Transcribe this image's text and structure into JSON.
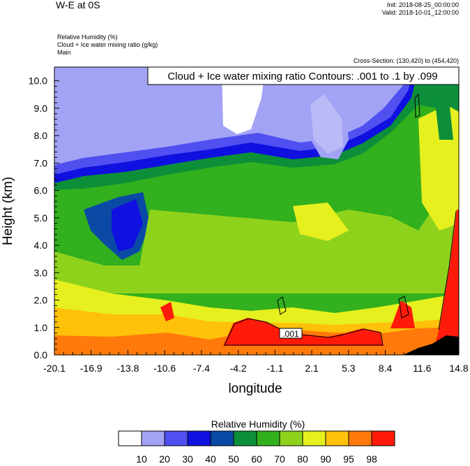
{
  "header": {
    "title": "W-E at 0S",
    "init": "Init: 2018-08-25_00:00:00",
    "valid": "Valid: 2018-10-01_12:00:00",
    "field1": "Relative Humidity   (%)",
    "field2": "Cloud + Ice water mixing ratio   (g/kg)",
    "field3": "Main",
    "cross_section": "Cross-Section: (130,420) to (454,420)"
  },
  "chart_data": {
    "type": "heatmap",
    "title": "",
    "xlabel": "longitude",
    "ylabel": "Height (km)",
    "xticks": [
      "-20.1",
      "-16.9",
      "-13.8",
      "-10.6",
      "-7.4",
      "-4.2",
      "-1.1",
      "2.1",
      "5.3",
      "8.4",
      "11.6",
      "14.8"
    ],
    "yticks": [
      "0.0",
      "1.0",
      "2.0",
      "3.0",
      "4.0",
      "5.0",
      "6.0",
      "7.0",
      "8.0",
      "9.0",
      "10.0"
    ],
    "xlim": [
      -20.1,
      14.8
    ],
    "ylim": [
      0,
      10.5
    ],
    "contour_note": "Cloud + Ice water mixing ratio Contours: .001 to .1 by .099",
    "contour_label": ".001",
    "colorbar_title": "Relative Humidity  (%)",
    "colorbar_levels": [
      "10",
      "20",
      "30",
      "40",
      "50",
      "60",
      "70",
      "80",
      "90",
      "95",
      "98"
    ],
    "colorbar_colors": [
      "#ffffff",
      "#a3a3f5",
      "#5050f0",
      "#1010e0",
      "#0a4aa5",
      "#0d8f3a",
      "#32b01e",
      "#8fd21c",
      "#e6f01e",
      "#ffc10a",
      "#ff7a0a",
      "#ff1a0a"
    ]
  }
}
